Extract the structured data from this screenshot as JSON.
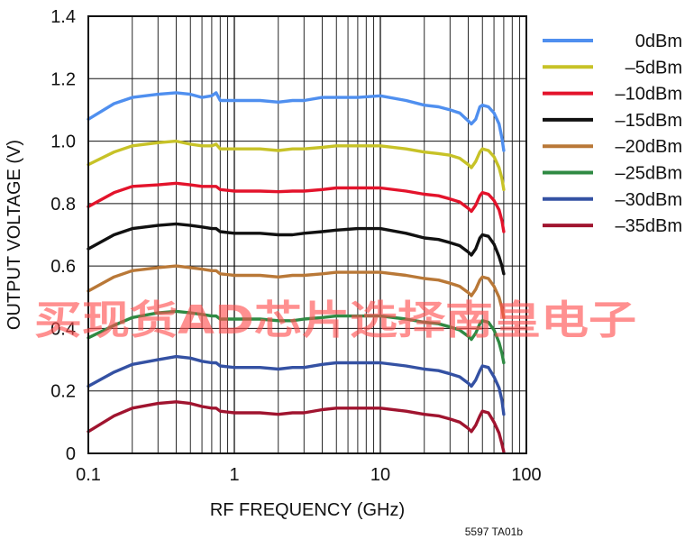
{
  "chart_data": {
    "type": "line",
    "xlabel": "RF FREQUENCY (GHz)",
    "ylabel": "OUTPUT VOLTAGE (V)",
    "x_scale": "log",
    "xlim": [
      0.1,
      100
    ],
    "ylim": [
      0,
      1.4
    ],
    "x_ticks": [
      "0.1",
      "1",
      "10",
      "100"
    ],
    "y_ticks": [
      "0",
      "0.2",
      "0.4",
      "0.6",
      "0.8",
      "1.0",
      "1.2",
      "1.4"
    ],
    "grid": true,
    "legend_position": "top-right",
    "x": [
      0.1,
      0.15,
      0.2,
      0.3,
      0.4,
      0.5,
      0.6,
      0.7,
      0.75,
      0.8,
      1,
      1.5,
      2,
      2.5,
      3,
      4,
      5,
      7,
      10,
      15,
      20,
      25,
      30,
      35,
      40,
      42,
      45,
      48,
      50,
      55,
      60,
      65,
      68,
      70
    ],
    "series": [
      {
        "name": "0dBm",
        "color": "#4f8fef",
        "values": [
          1.07,
          1.12,
          1.14,
          1.15,
          1.155,
          1.15,
          1.14,
          1.145,
          1.155,
          1.13,
          1.13,
          1.13,
          1.125,
          1.13,
          1.13,
          1.14,
          1.14,
          1.14,
          1.145,
          1.13,
          1.115,
          1.11,
          1.1,
          1.09,
          1.065,
          1.055,
          1.07,
          1.11,
          1.115,
          1.11,
          1.09,
          1.055,
          1.01,
          0.97
        ]
      },
      {
        "name": "–5dBm",
        "color": "#c7c227",
        "values": [
          0.925,
          0.965,
          0.985,
          0.995,
          1.0,
          0.99,
          0.985,
          0.985,
          0.99,
          0.975,
          0.975,
          0.975,
          0.97,
          0.975,
          0.975,
          0.98,
          0.985,
          0.985,
          0.985,
          0.975,
          0.965,
          0.96,
          0.955,
          0.945,
          0.925,
          0.915,
          0.935,
          0.965,
          0.975,
          0.97,
          0.95,
          0.915,
          0.88,
          0.845
        ]
      },
      {
        "name": "–10dBm",
        "color": "#e3132b",
        "values": [
          0.79,
          0.835,
          0.855,
          0.86,
          0.865,
          0.86,
          0.855,
          0.855,
          0.855,
          0.845,
          0.84,
          0.84,
          0.838,
          0.84,
          0.84,
          0.845,
          0.85,
          0.85,
          0.85,
          0.84,
          0.83,
          0.825,
          0.815,
          0.805,
          0.785,
          0.775,
          0.795,
          0.825,
          0.835,
          0.83,
          0.81,
          0.78,
          0.745,
          0.71
        ]
      },
      {
        "name": "–15dBm",
        "color": "#111111",
        "values": [
          0.655,
          0.7,
          0.72,
          0.73,
          0.735,
          0.73,
          0.725,
          0.72,
          0.72,
          0.71,
          0.705,
          0.705,
          0.7,
          0.7,
          0.705,
          0.71,
          0.715,
          0.72,
          0.72,
          0.705,
          0.69,
          0.685,
          0.675,
          0.665,
          0.645,
          0.635,
          0.655,
          0.69,
          0.7,
          0.695,
          0.67,
          0.63,
          0.6,
          0.575
        ]
      },
      {
        "name": "–20dBm",
        "color": "#b97837",
        "values": [
          0.52,
          0.565,
          0.585,
          0.595,
          0.6,
          0.595,
          0.59,
          0.585,
          0.585,
          0.575,
          0.57,
          0.57,
          0.565,
          0.57,
          0.57,
          0.575,
          0.58,
          0.58,
          0.58,
          0.57,
          0.56,
          0.555,
          0.545,
          0.535,
          0.515,
          0.505,
          0.525,
          0.555,
          0.565,
          0.56,
          0.535,
          0.5,
          0.465,
          0.435
        ]
      },
      {
        "name": "–25dBm",
        "color": "#2f8a43",
        "values": [
          0.37,
          0.41,
          0.435,
          0.45,
          0.455,
          0.45,
          0.445,
          0.44,
          0.44,
          0.43,
          0.43,
          0.43,
          0.425,
          0.425,
          0.43,
          0.435,
          0.44,
          0.44,
          0.44,
          0.43,
          0.42,
          0.415,
          0.405,
          0.395,
          0.375,
          0.365,
          0.385,
          0.415,
          0.425,
          0.42,
          0.395,
          0.355,
          0.32,
          0.29
        ]
      },
      {
        "name": "–30dBm",
        "color": "#3451a3",
        "values": [
          0.215,
          0.26,
          0.285,
          0.3,
          0.31,
          0.305,
          0.295,
          0.29,
          0.29,
          0.28,
          0.275,
          0.275,
          0.27,
          0.275,
          0.275,
          0.285,
          0.29,
          0.29,
          0.29,
          0.28,
          0.27,
          0.265,
          0.255,
          0.245,
          0.225,
          0.215,
          0.235,
          0.265,
          0.28,
          0.275,
          0.245,
          0.21,
          0.17,
          0.125
        ]
      },
      {
        "name": "–35dBm",
        "color": "#a0142f",
        "values": [
          0.07,
          0.12,
          0.145,
          0.16,
          0.165,
          0.16,
          0.15,
          0.145,
          0.145,
          0.135,
          0.13,
          0.13,
          0.125,
          0.13,
          0.13,
          0.14,
          0.145,
          0.145,
          0.145,
          0.135,
          0.125,
          0.12,
          0.11,
          0.1,
          0.08,
          0.07,
          0.09,
          0.12,
          0.135,
          0.13,
          0.1,
          0.065,
          0.03,
          0.005
        ]
      }
    ]
  },
  "figure_id": "5597 TA01b",
  "watermark": "买现货AD芯片选择南皇电子"
}
